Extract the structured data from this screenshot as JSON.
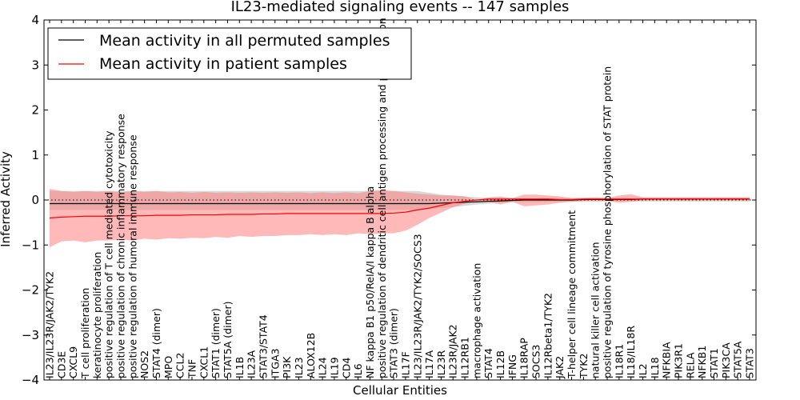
{
  "chart_data": {
    "type": "line",
    "title": "IL23-mediated signaling events -- 147 samples",
    "xlabel": "Cellular Entities",
    "ylabel": "Inferred Activity",
    "ylim": [
      -4,
      4
    ],
    "yticks": [
      "4",
      "3",
      "2",
      "1",
      "0",
      "−1",
      "−2",
      "−3",
      "−4"
    ],
    "reference_line": 0,
    "categories": [
      "IL23/IL23R/JAK2/TYK2",
      "CD3E",
      "CXCL9",
      "T cell proliferation",
      "keratinocyte proliferation",
      "positive regulation of T cell mediated cytotoxicity",
      "positive regulation of chronic inflammatory response",
      "positive regulation of humoral immune response",
      "NOS2",
      "STAT4 (dimer)",
      "MPO",
      "CCL2",
      "TNF",
      "CXCL1",
      "STAT1 (dimer)",
      "STAT5A (dimer)",
      "IL1B",
      "IL23A",
      "STAT3/STAT4",
      "ITGA3",
      "PI3K",
      "IL23",
      "ALOX12B",
      "IL24",
      "IL19",
      "CD4",
      "IL6",
      "NF kappa B1 p50/RelA/I kappa B alpha",
      "positive regulation of dendritic cell antigen processing and presentation",
      "STAT3 (dimer)",
      "IL17F",
      "IL23/IL23R/JAK2/TYK2/SOCS3",
      "IL17A",
      "IL23R",
      "IL23R/JAK2",
      "IL12RB1",
      "macrophage activation",
      "STAT4",
      "IL12B",
      "IFNG",
      "IL18RAP",
      "SOCS3",
      "IL12Rbeta1/TYK2",
      "JAK2",
      "T-helper cell lineage commitment",
      "TYK2",
      "natural killer cell activation",
      "positive regulation of tyrosine phosphorylation of STAT protein",
      "IL18R1",
      "IL18/IL18R",
      "IL2",
      "IL18",
      "NFKBIA",
      "PIK3R1",
      "RELA",
      "NFKB1",
      "STAT1",
      "PIK3CA",
      "STAT5A",
      "STAT3"
    ],
    "series": [
      {
        "name": "Mean activity in all permuted samples",
        "color": "#000000",
        "band_color": "#c8c8c8",
        "values": [
          -0.08,
          -0.08,
          -0.08,
          -0.08,
          -0.08,
          -0.08,
          -0.08,
          -0.08,
          -0.08,
          -0.08,
          -0.08,
          -0.08,
          -0.08,
          -0.08,
          -0.08,
          -0.08,
          -0.08,
          -0.08,
          -0.08,
          -0.08,
          -0.08,
          -0.08,
          -0.08,
          -0.08,
          -0.08,
          -0.08,
          -0.08,
          -0.08,
          -0.08,
          -0.08,
          -0.08,
          -0.08,
          -0.08,
          -0.07,
          -0.06,
          -0.05,
          -0.04,
          -0.03,
          -0.02,
          -0.01,
          0.0,
          0.0,
          0.0,
          0.0,
          0.0,
          0.01,
          0.01,
          0.01,
          0.01,
          0.01,
          0.02,
          0.02,
          0.02,
          0.02,
          0.02,
          0.02,
          0.02,
          0.02,
          0.02,
          0.02
        ],
        "lower": [
          -0.22,
          -0.22,
          -0.22,
          -0.22,
          -0.22,
          -0.22,
          -0.22,
          -0.22,
          -0.22,
          -0.22,
          -0.22,
          -0.22,
          -0.22,
          -0.22,
          -0.22,
          -0.22,
          -0.22,
          -0.22,
          -0.22,
          -0.22,
          -0.22,
          -0.22,
          -0.22,
          -0.22,
          -0.22,
          -0.22,
          -0.22,
          -0.22,
          -0.22,
          -0.22,
          -0.22,
          -0.22,
          -0.2,
          -0.18,
          -0.16,
          -0.13,
          -0.1,
          -0.08,
          -0.06,
          -0.05,
          -0.05,
          -0.05,
          -0.04,
          -0.04,
          -0.04,
          -0.04,
          -0.04,
          -0.03,
          -0.03,
          -0.03,
          -0.03,
          -0.03,
          -0.03,
          -0.03,
          -0.03,
          -0.03,
          -0.03,
          -0.03,
          -0.03,
          -0.03
        ],
        "upper": [
          0.2,
          0.2,
          0.2,
          0.2,
          0.2,
          0.2,
          0.2,
          0.2,
          0.2,
          0.2,
          0.2,
          0.2,
          0.2,
          0.2,
          0.2,
          0.2,
          0.2,
          0.2,
          0.2,
          0.2,
          0.2,
          0.2,
          0.2,
          0.2,
          0.2,
          0.2,
          0.2,
          0.2,
          0.2,
          0.2,
          0.2,
          0.2,
          0.16,
          0.12,
          0.1,
          0.08,
          0.06,
          0.05,
          0.05,
          0.05,
          0.05,
          0.05,
          0.05,
          0.05,
          0.05,
          0.05,
          0.05,
          0.06,
          0.06,
          0.06,
          0.06,
          0.06,
          0.06,
          0.06,
          0.06,
          0.06,
          0.06,
          0.06,
          0.06,
          0.06
        ]
      },
      {
        "name": "Mean activity in patient samples",
        "color": "#ff0000",
        "band_color": "#ff7f7f",
        "values": [
          -0.4,
          -0.38,
          -0.37,
          -0.36,
          -0.36,
          -0.36,
          -0.35,
          -0.35,
          -0.35,
          -0.34,
          -0.34,
          -0.34,
          -0.33,
          -0.33,
          -0.33,
          -0.32,
          -0.32,
          -0.32,
          -0.31,
          -0.31,
          -0.3,
          -0.3,
          -0.3,
          -0.3,
          -0.3,
          -0.3,
          -0.3,
          -0.3,
          -0.3,
          -0.29,
          -0.27,
          -0.22,
          -0.18,
          -0.12,
          -0.06,
          -0.03,
          0.0,
          0.02,
          0.02,
          0.02,
          0.02,
          0.02,
          0.02,
          0.01,
          0.01,
          0.02,
          0.02,
          0.02,
          0.02,
          0.02,
          0.02,
          0.02,
          0.02,
          0.02,
          0.02,
          0.02,
          0.02,
          0.02,
          0.02,
          0.02
        ],
        "lower": [
          -1.05,
          -0.92,
          -0.9,
          -0.94,
          -0.9,
          -0.9,
          -0.88,
          -0.9,
          -0.86,
          -0.88,
          -0.85,
          -0.86,
          -0.84,
          -0.85,
          -0.82,
          -0.84,
          -0.8,
          -0.82,
          -0.8,
          -0.8,
          -0.78,
          -0.78,
          -0.76,
          -0.78,
          -0.76,
          -0.78,
          -0.74,
          -0.76,
          -0.74,
          -0.74,
          -0.68,
          -0.55,
          -0.4,
          -0.28,
          -0.16,
          -0.08,
          0.0,
          -0.04,
          -0.1,
          -0.04,
          -0.14,
          -0.12,
          -0.1,
          -0.06,
          -0.04,
          -0.02,
          -0.01,
          -0.02,
          -0.06,
          -0.04,
          -0.01,
          -0.01,
          -0.01,
          -0.01,
          -0.01,
          -0.01,
          -0.01,
          -0.01,
          -0.01,
          -0.01
        ],
        "upper": [
          0.25,
          0.2,
          0.18,
          0.2,
          0.18,
          0.2,
          0.17,
          0.2,
          0.18,
          0.2,
          0.17,
          0.18,
          0.16,
          0.18,
          0.16,
          0.17,
          0.16,
          0.17,
          0.16,
          0.17,
          0.16,
          0.17,
          0.15,
          0.17,
          0.15,
          0.17,
          0.15,
          0.2,
          0.22,
          0.2,
          0.17,
          0.14,
          0.12,
          0.1,
          0.1,
          0.08,
          0.0,
          0.06,
          0.08,
          0.04,
          0.12,
          0.12,
          0.1,
          0.08,
          0.04,
          0.05,
          0.06,
          0.04,
          0.1,
          0.13,
          0.06,
          0.06,
          0.06,
          0.06,
          0.06,
          0.06,
          0.06,
          0.06,
          0.06,
          0.06
        ]
      }
    ],
    "legend": "top-left",
    "grid": false
  }
}
